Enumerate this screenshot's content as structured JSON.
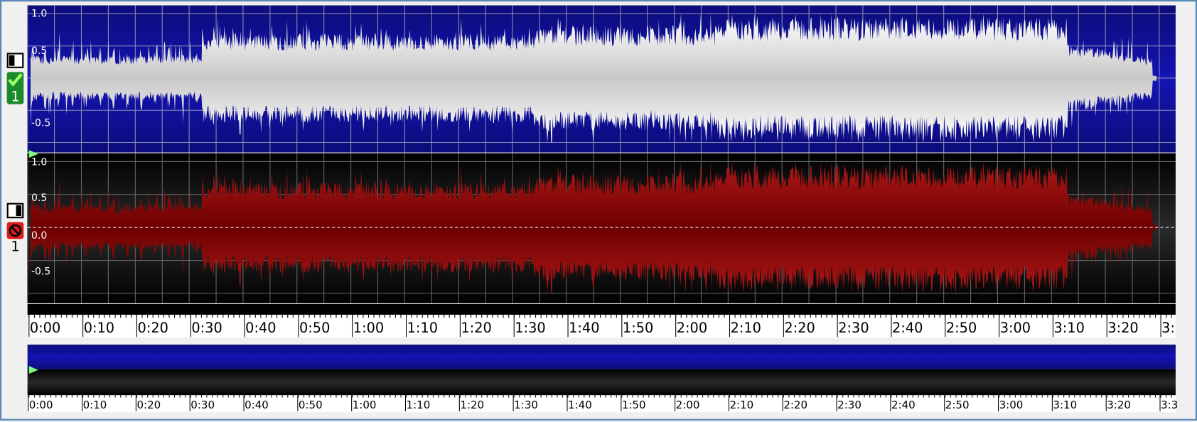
{
  "top_channel": {
    "badge": "1",
    "amplitude_labels": [
      "1.0",
      "0.5",
      "-0.5"
    ]
  },
  "bottom_channel": {
    "badge": "1",
    "amplitude_labels": [
      "1.0",
      "0.5",
      "0.0",
      "-0.5"
    ]
  },
  "time_ruler": {
    "labels": [
      "0:00",
      "0:10",
      "0:20",
      "0:30",
      "0:40",
      "0:50",
      "1:00",
      "1:10",
      "1:20",
      "1:30",
      "1:40",
      "1:50",
      "2:00",
      "2:10",
      "2:20",
      "2:30",
      "2:40",
      "2:50",
      "3:00",
      "3:10",
      "3:20",
      "3:"
    ]
  },
  "overview_ruler": {
    "labels": [
      "0:00",
      "0:10",
      "0:20",
      "0:30",
      "0:40",
      "0:50",
      "1:00",
      "1:10",
      "1:20",
      "1:30",
      "1:40",
      "1:50",
      "2:00",
      "2:10",
      "2:20",
      "2:30",
      "2:40",
      "2:50",
      "3:00",
      "3:10",
      "3:20",
      "3:3"
    ]
  }
}
